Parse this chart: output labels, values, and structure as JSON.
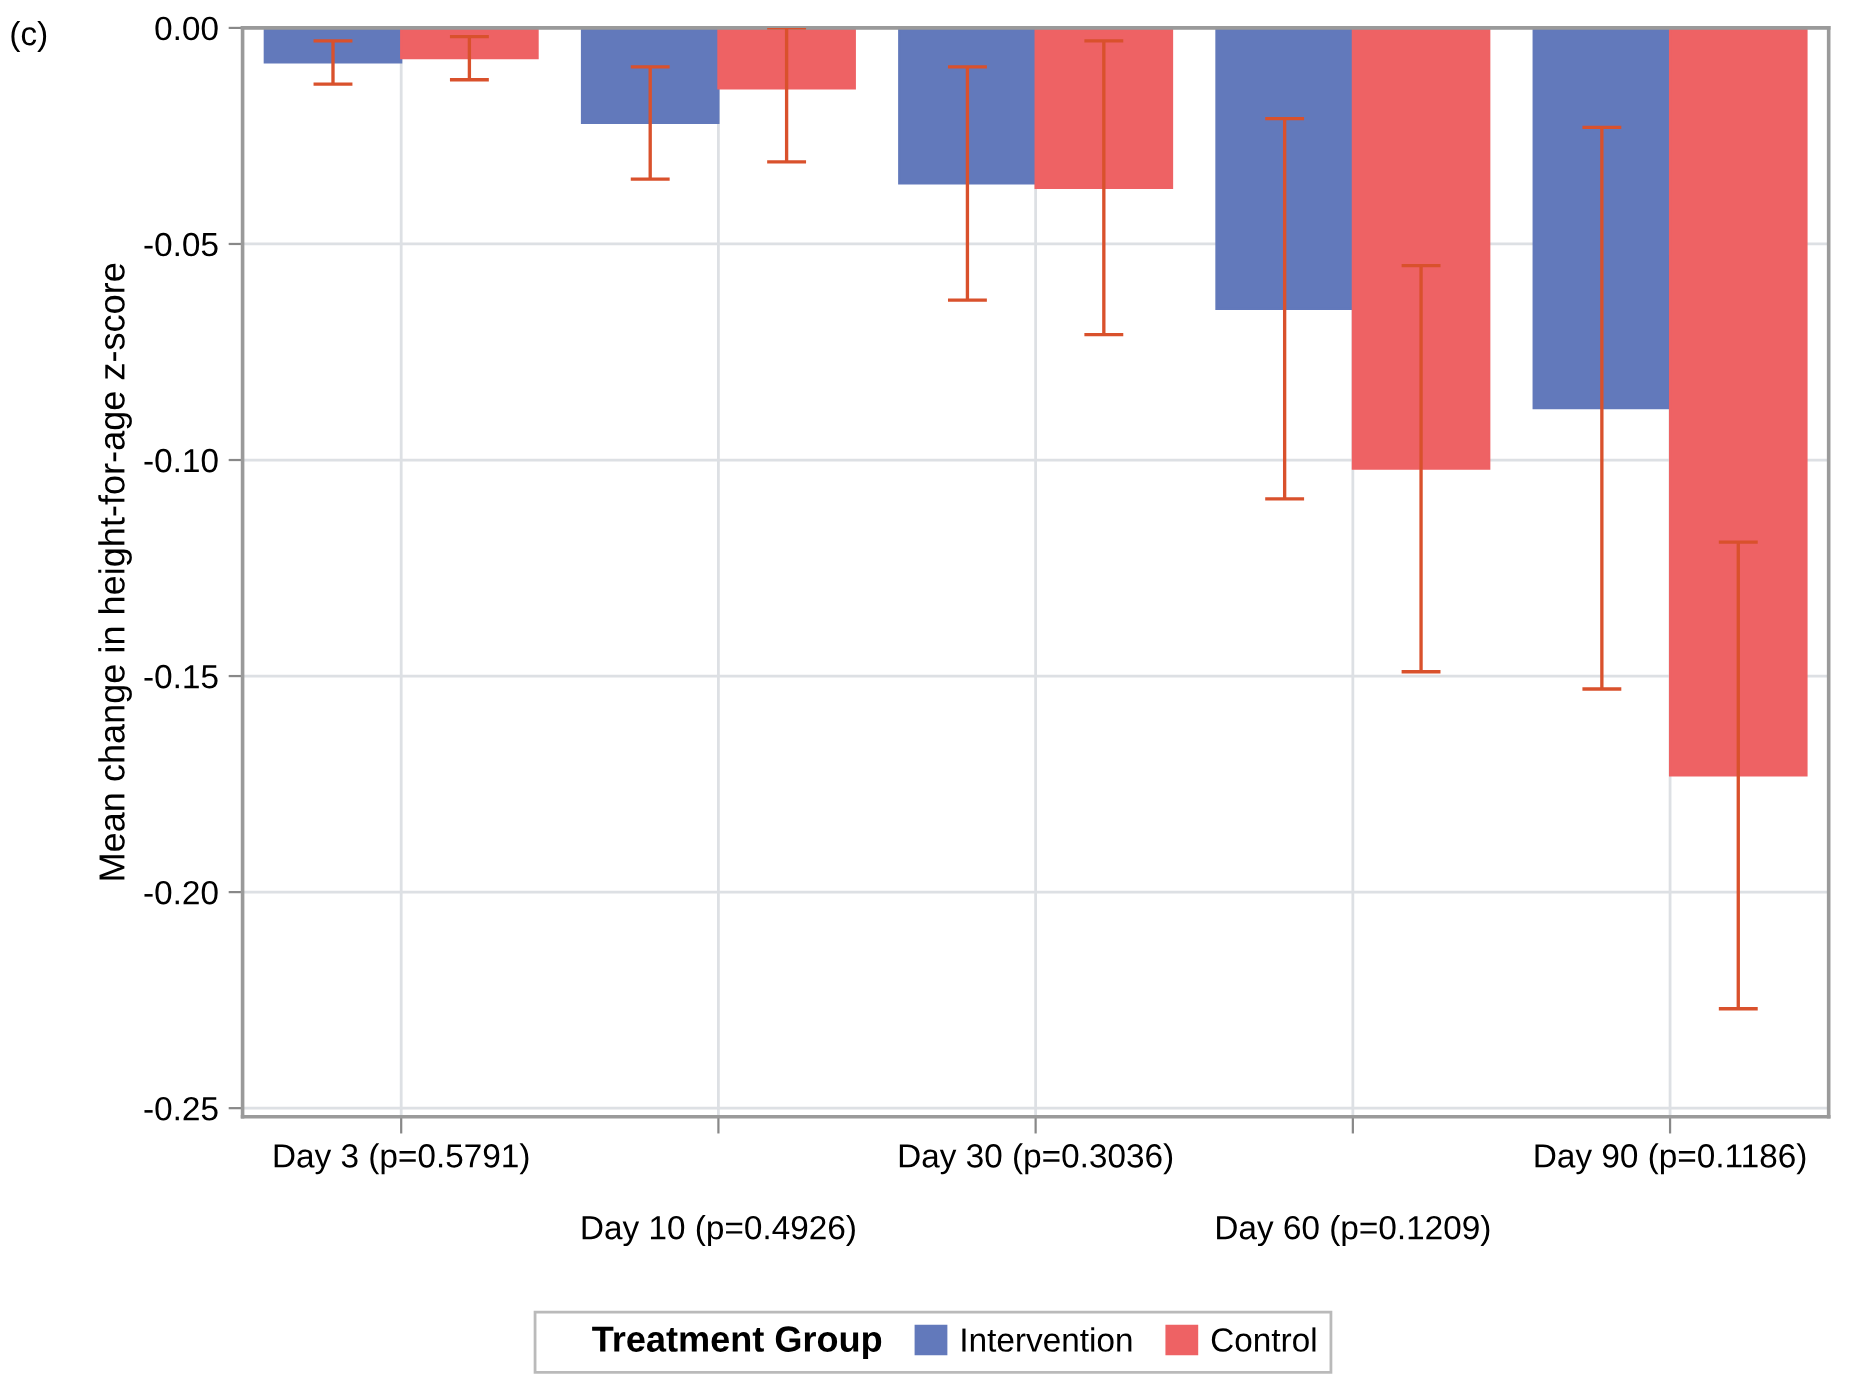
{
  "chart_data": {
    "type": "bar",
    "ylabel": "Mean change in height-for-age z-score",
    "legend_title": "Treatment Group",
    "annotations": [
      "(c)"
    ],
    "categories": [
      "Day 3 (p=0.5791)",
      "Day 10 (p=0.4926)",
      "Day 30 (p=0.3036)",
      "Day 60 (p=0.1209)",
      "Day 90 (p=0.1186)"
    ],
    "series": [
      {
        "name": "Intervention",
        "color": "#6279bb",
        "values": [
          -0.008,
          -0.022,
          -0.036,
          -0.065,
          -0.088
        ],
        "errors": [
          0.005,
          0.013,
          0.027,
          0.044,
          0.065
        ]
      },
      {
        "name": "Control",
        "color": "#ee6264",
        "values": [
          -0.007,
          -0.014,
          -0.037,
          -0.102,
          -0.173
        ],
        "errors": [
          0.005,
          [
            -0.031,
            0.0
          ],
          0.034,
          0.047,
          0.054
        ]
      }
    ],
    "ylim": [
      -0.252,
      0.0
    ],
    "yticks": [
      {
        "value": 0,
        "label": "0.00"
      },
      {
        "value": -0.05,
        "label": "-0.05"
      },
      {
        "value": -0.1,
        "label": "-0.10"
      },
      {
        "value": -0.15,
        "label": "-0.15"
      },
      {
        "value": -0.2,
        "label": "-0.20"
      },
      {
        "value": -0.25,
        "label": "-0.25"
      }
    ],
    "grid": true,
    "legend": "bottom"
  }
}
